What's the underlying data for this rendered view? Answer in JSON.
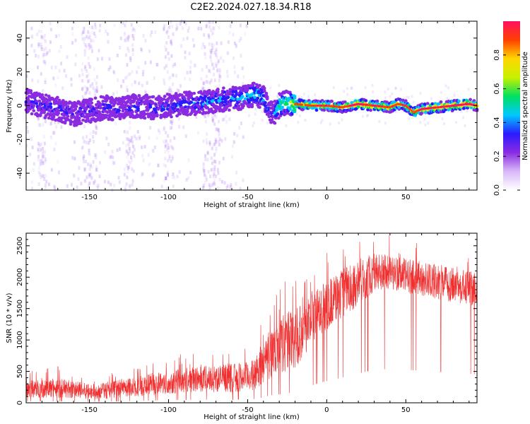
{
  "figure": {
    "title": "C2E2.2024.027.18.34.R18"
  },
  "chart_data": [
    {
      "type": "heatmap",
      "xlabel": "Height of straight line (km)",
      "ylabel": "Frequency (Hz)",
      "xlim": [
        -190,
        95
      ],
      "ylim": [
        -50,
        50
      ],
      "xticks": [
        -150,
        -100,
        -50,
        0,
        50
      ],
      "yticks": [
        -40,
        -20,
        0,
        20,
        40
      ],
      "colorbar": {
        "label": "Normalized spectral amplitude",
        "range": [
          0,
          1
        ],
        "ticks": [
          0.0,
          0.2,
          0.4,
          0.6,
          0.8
        ],
        "colormap": [
          "#ffffff",
          "#d8b8f8",
          "#8a2be2",
          "#2a1bff",
          "#00c8ff",
          "#00e060",
          "#c8f000",
          "#ffd700",
          "#ff4000",
          "#ff1060"
        ]
      },
      "ridge_x": [
        -190,
        -180,
        -170,
        -160,
        -150,
        -140,
        -130,
        -120,
        -110,
        -100,
        -90,
        -80,
        -70,
        -60,
        -50,
        -45,
        -40,
        -37,
        -34,
        -30,
        -25,
        -20,
        -10,
        0,
        10,
        20,
        30,
        40,
        45,
        50,
        55,
        60,
        70,
        80,
        90,
        95
      ],
      "ridge_freq": [
        3,
        0,
        -2,
        -5,
        -3,
        -1,
        -2,
        0,
        -1,
        0,
        1,
        2,
        3,
        4,
        5,
        7,
        5,
        -2,
        -5,
        0,
        2,
        1,
        0,
        0,
        -1,
        1,
        0,
        -1,
        1,
        0,
        -4,
        -2,
        -1,
        0,
        1,
        0
      ],
      "ridge_amplitude": [
        0.25,
        0.3,
        0.3,
        0.28,
        0.3,
        0.3,
        0.28,
        0.3,
        0.3,
        0.33,
        0.35,
        0.4,
        0.38,
        0.4,
        0.45,
        0.5,
        0.45,
        0.35,
        0.3,
        0.55,
        0.6,
        0.7,
        0.72,
        0.8,
        0.75,
        0.85,
        0.8,
        0.78,
        0.75,
        0.8,
        0.72,
        0.85,
        0.82,
        0.85,
        0.85,
        0.8
      ]
    },
    {
      "type": "line",
      "xlabel": "Height of straight line (km)",
      "ylabel": "SNR (10 * v/v)",
      "xlim": [
        -190,
        95
      ],
      "ylim": [
        0,
        2700
      ],
      "xticks": [
        -150,
        -100,
        -50,
        0,
        50
      ],
      "yticks": [
        0,
        500,
        1000,
        1500,
        2000,
        2500
      ],
      "series": [
        {
          "color": "#f03030",
          "envelope_x": [
            -190,
            -170,
            -150,
            -140,
            -130,
            -120,
            -110,
            -100,
            -90,
            -80,
            -70,
            -60,
            -50,
            -45,
            -40,
            -35,
            -30,
            -25,
            -20,
            -15,
            -10,
            -5,
            0,
            5,
            10,
            15,
            20,
            25,
            30,
            40,
            50,
            60,
            70,
            80,
            90,
            95
          ],
          "envelope_low": [
            80,
            80,
            60,
            60,
            80,
            100,
            120,
            140,
            160,
            160,
            170,
            170,
            180,
            200,
            300,
            400,
            450,
            500,
            550,
            700,
            900,
            1050,
            1150,
            1250,
            1350,
            1450,
            1550,
            1650,
            1750,
            1800,
            1750,
            1700,
            1650,
            1600,
            1550,
            1500
          ],
          "envelope_high": [
            350,
            400,
            300,
            320,
            380,
            420,
            480,
            520,
            560,
            600,
            600,
            620,
            650,
            700,
            1000,
            1200,
            1350,
            1450,
            1550,
            1650,
            1750,
            1850,
            1950,
            2050,
            2150,
            2200,
            2300,
            2350,
            2400,
            2350,
            2300,
            2250,
            2200,
            2150,
            2100,
            2050
          ],
          "mean": [
            200,
            220,
            170,
            180,
            220,
            250,
            280,
            310,
            340,
            350,
            370,
            380,
            400,
            450,
            650,
            800,
            900,
            1000,
            1050,
            1150,
            1300,
            1450,
            1550,
            1650,
            1750,
            1850,
            1950,
            2000,
            2050,
            2050,
            2000,
            1950,
            1950,
            1900,
            1850,
            1800
          ]
        }
      ]
    }
  ]
}
